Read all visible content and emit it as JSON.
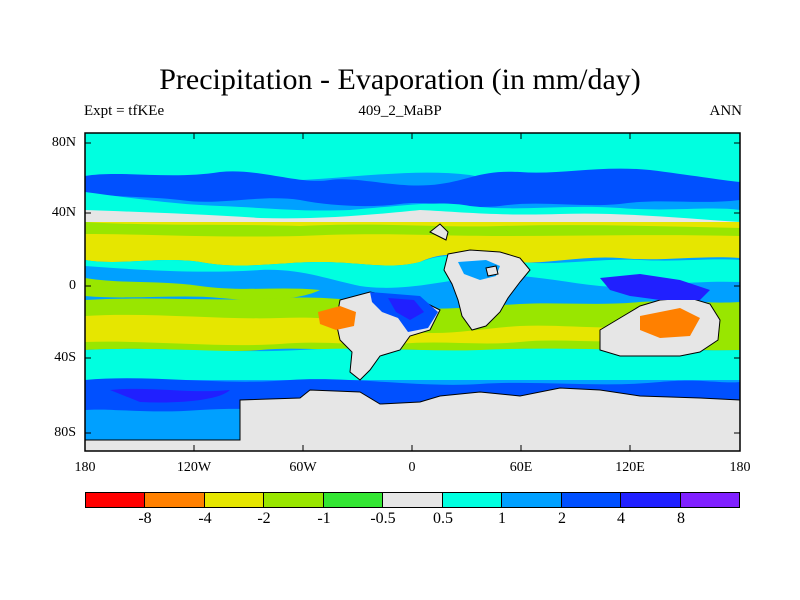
{
  "title": "Precipitation - Evaporation (in mm/day)",
  "subtitle_left": "Expt = tfKEe",
  "subtitle_center": "409_2_MaBP",
  "subtitle_right": "ANN",
  "y_ticks": [
    "80N",
    "40N",
    "0",
    "40S",
    "80S"
  ],
  "x_ticks": [
    "180",
    "120W",
    "60W",
    "0",
    "60E",
    "120E",
    "180"
  ],
  "colorbar": {
    "colors": [
      "#ff0000",
      "#ff8000",
      "#e6e600",
      "#99e600",
      "#33e633",
      "#e6e6e6",
      "#00ffe0",
      "#00a0ff",
      "#0050ff",
      "#2020ff",
      "#8020ff"
    ],
    "labels": [
      "-8",
      "-4",
      "-2",
      "-1",
      "-0.5",
      "0.5",
      "1",
      "2",
      "4",
      "8"
    ]
  }
}
